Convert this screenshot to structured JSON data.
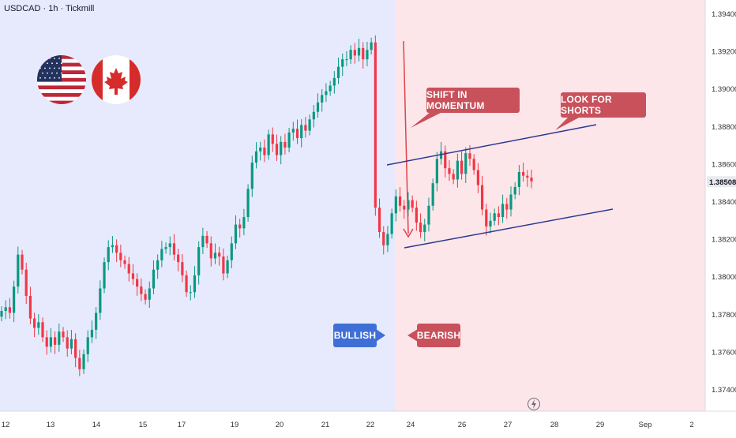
{
  "header": {
    "symbol_line": "USDCAD · 1h · Tickmill"
  },
  "colors": {
    "bull_bg": "#e6eafc",
    "bear_bg": "#fde6ea",
    "candle": "#089981",
    "candle_down": "#f23645",
    "channel": "#2b3a8f",
    "callout_red": "#c8515b",
    "callout_blue": "#3f6fd6"
  },
  "annotations": {
    "shift": "SHIFT IN MOMENTUM",
    "shorts": "LOOK FOR SHORTS",
    "bullish": "BULLISH",
    "bearish": "BEARISH"
  },
  "icons": [
    "usa-flag-icon",
    "canada-flag-icon",
    "lightning-icon"
  ],
  "chart_data": {
    "type": "candlestick",
    "symbol": "USDCAD",
    "timeframe": "1h",
    "broker": "Tickmill",
    "x_tick_labels": [
      "12",
      "13",
      "14",
      "15",
      "17",
      "19",
      "20",
      "21",
      "22",
      "24",
      "26",
      "27",
      "28",
      "29",
      "Sep",
      "2"
    ],
    "y_tick_labels": [
      "1.39400",
      "1.39200",
      "1.39000",
      "1.38800",
      "1.38600",
      "1.38400",
      "1.38200",
      "1.38000",
      "1.37800",
      "1.37600",
      "1.37400"
    ],
    "ylim": [
      1.373,
      1.3945
    ],
    "current_price": "1.38508",
    "close_series": [
      1.3782,
      1.3784,
      1.3781,
      1.3795,
      1.3812,
      1.3804,
      1.379,
      1.3778,
      1.3773,
      1.3776,
      1.3768,
      1.3763,
      1.3768,
      1.3764,
      1.3771,
      1.3768,
      1.3762,
      1.3767,
      1.3757,
      1.3751,
      1.3759,
      1.3768,
      1.3772,
      1.3781,
      1.3794,
      1.3808,
      1.3816,
      1.3817,
      1.3813,
      1.3809,
      1.3807,
      1.3802,
      1.3799,
      1.3795,
      1.3791,
      1.3788,
      1.3794,
      1.3804,
      1.3809,
      1.3815,
      1.3816,
      1.3818,
      1.3812,
      1.3808,
      1.3801,
      1.3792,
      1.3792,
      1.3801,
      1.3816,
      1.3822,
      1.3818,
      1.381,
      1.3813,
      1.3811,
      1.3802,
      1.3809,
      1.3818,
      1.3828,
      1.3826,
      1.3832,
      1.3847,
      1.3861,
      1.3867,
      1.3869,
      1.3865,
      1.3876,
      1.3871,
      1.3865,
      1.3872,
      1.3869,
      1.3877,
      1.3879,
      1.3874,
      1.3881,
      1.3878,
      1.3884,
      1.3888,
      1.3893,
      1.3897,
      1.3899,
      1.3902,
      1.3906,
      1.3912,
      1.3916,
      1.3916,
      1.3921,
      1.3918,
      1.3922,
      1.3916,
      1.3921,
      1.3925,
      1.3837,
      1.3824,
      1.3817,
      1.3823,
      1.3834,
      1.3843,
      1.3838,
      1.3836,
      1.3841,
      1.3837,
      1.3829,
      1.3824,
      1.3828,
      1.3838,
      1.385,
      1.3863,
      1.3867,
      1.3858,
      1.3855,
      1.3852,
      1.3862,
      1.3855,
      1.3866,
      1.3863,
      1.3857,
      1.3849,
      1.3836,
      1.3827,
      1.383,
      1.3834,
      1.3832,
      1.3839,
      1.3836,
      1.3844,
      1.3848,
      1.3856,
      1.3854,
      1.3853,
      1.3851
    ]
  }
}
